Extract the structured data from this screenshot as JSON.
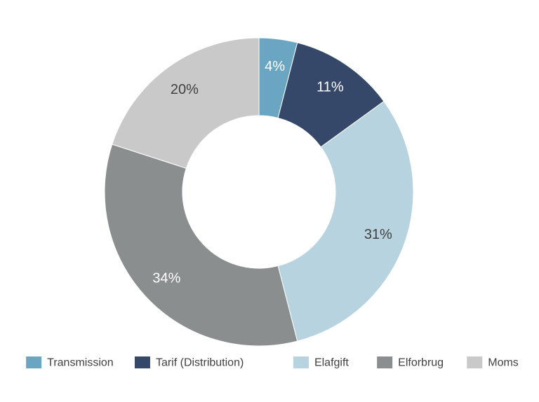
{
  "chart_data": {
    "type": "pie",
    "donut": true,
    "categories": [
      "Transmission",
      "Tarif (Distribution)",
      "Elafgift",
      "Elforbrug",
      "Moms"
    ],
    "values": [
      4,
      11,
      31,
      34,
      20
    ],
    "labels": [
      "4%",
      "11%",
      "31%",
      "34%",
      "20%"
    ],
    "colors": [
      "#6aa6c1",
      "#36486a",
      "#b6d3df",
      "#8a8e8f",
      "#c9c9c9"
    ],
    "label_colors": [
      "#ffffff",
      "#ffffff",
      "#404040",
      "#ffffff",
      "#404040"
    ],
    "legend_position": "bottom",
    "title": ""
  }
}
